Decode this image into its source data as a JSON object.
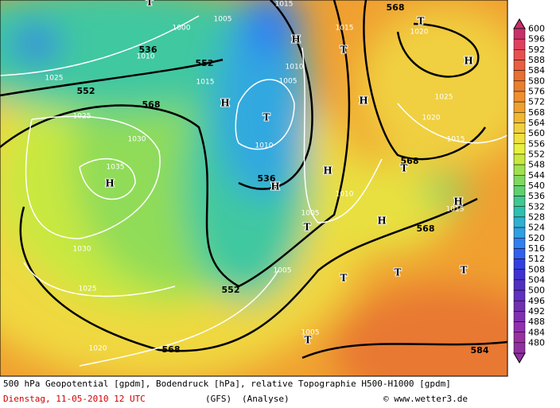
{
  "map": {
    "geopotential_labels": [
      "568",
      "552",
      "552",
      "536",
      "568",
      "536",
      "568",
      "568",
      "552",
      "568",
      "584"
    ],
    "pressure_labels": [
      "1025",
      "1025",
      "1030",
      "1035",
      "1030",
      "1025",
      "1020",
      "1010",
      "1005",
      "1000",
      "1015",
      "1010",
      "1005",
      "1010",
      "1015",
      "1015",
      "1020",
      "1025",
      "1020",
      "1015",
      "1010",
      "1005",
      "1005",
      "1005",
      "1015"
    ],
    "highs": [
      "H",
      "H",
      "H",
      "H",
      "H",
      "H",
      "H",
      "H",
      "H"
    ],
    "lows": [
      "T",
      "T",
      "T",
      "T",
      "T",
      "T",
      "T",
      "T",
      "T",
      "T"
    ]
  },
  "colorbar": {
    "labels": [
      600,
      596,
      592,
      588,
      584,
      580,
      576,
      572,
      568,
      564,
      560,
      556,
      552,
      548,
      544,
      540,
      536,
      532,
      528,
      524,
      520,
      516,
      512,
      508,
      504,
      500,
      496,
      492,
      488,
      484,
      480
    ]
  },
  "footer": {
    "description": "500 hPa Geopotential [gpdm], Bodendruck [hPa], relative Topographie H500-H1000 [gpdm]",
    "date": "Dienstag, 11-05-2010  12 UTC",
    "model": "(GFS)",
    "analysis": "(Analyse)",
    "copyright": "© www.wetter3.de"
  }
}
